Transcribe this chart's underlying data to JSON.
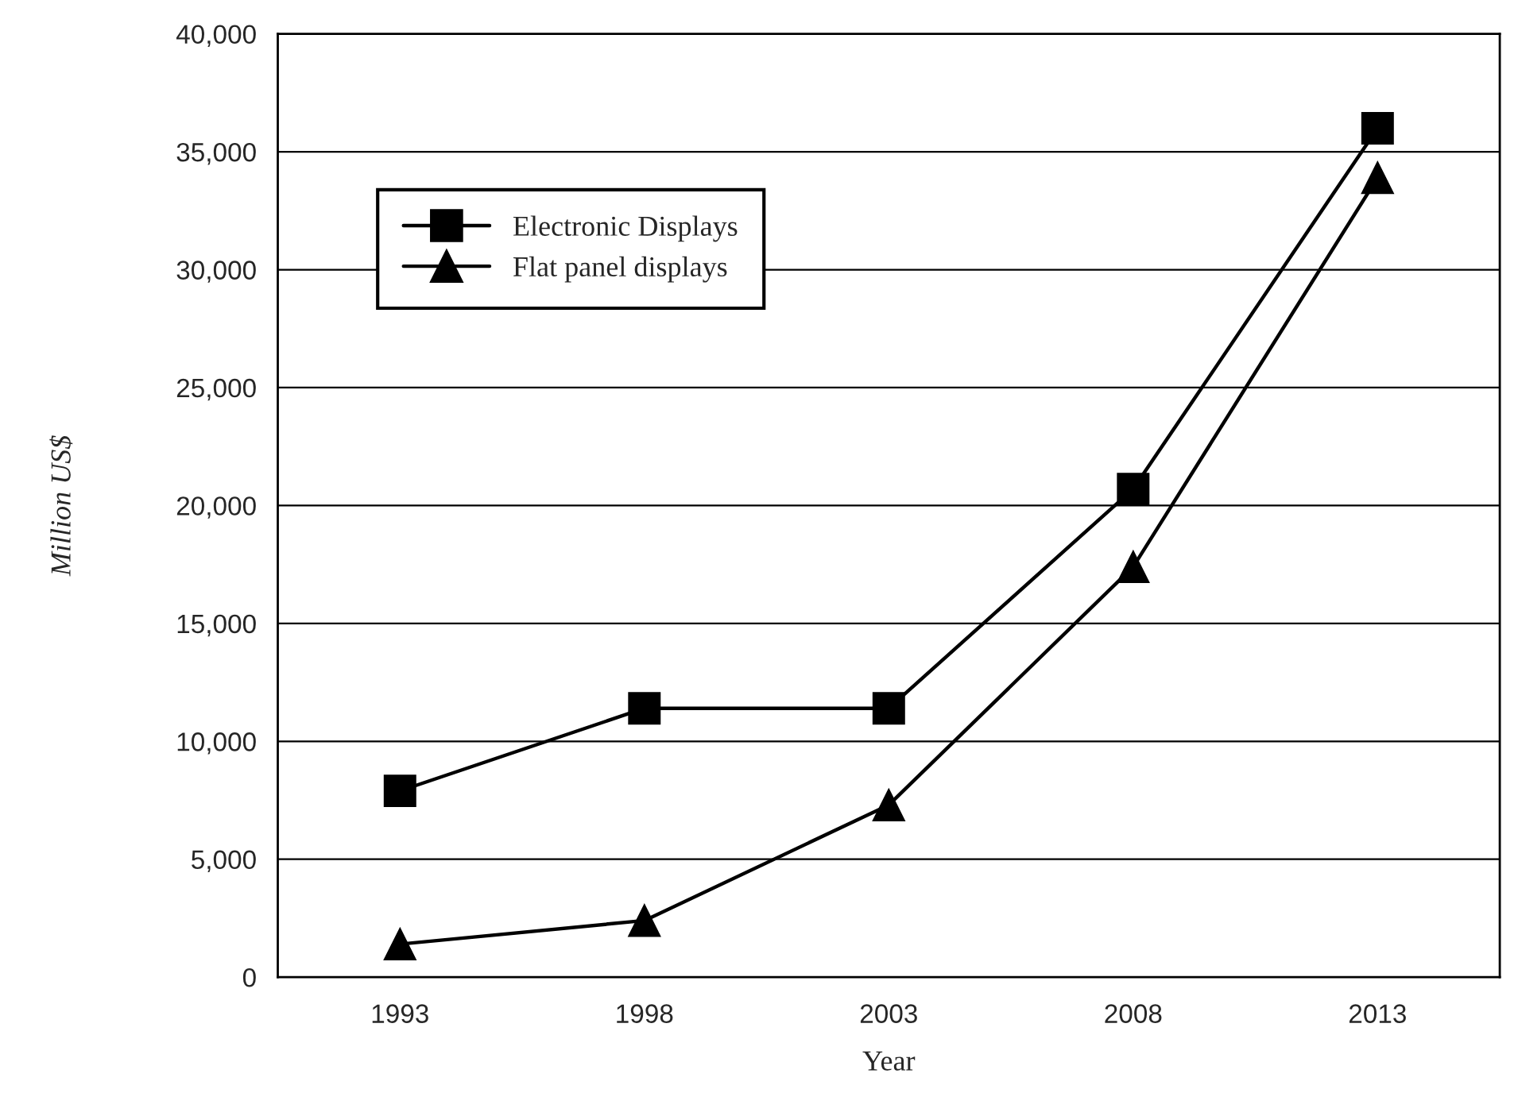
{
  "chart_data": {
    "type": "line",
    "xlabel": "Year",
    "ylabel": "Million US$",
    "categories": [
      "1993",
      "1998",
      "2003",
      "2008",
      "2013"
    ],
    "series": [
      {
        "name": "Electronic Displays",
        "color": "#000000",
        "marker": "square",
        "values": [
          7900,
          11400,
          11400,
          20700,
          36000
        ]
      },
      {
        "name": "Flat panel displays",
        "color": "#000000",
        "marker": "triangle",
        "values": [
          1400,
          2400,
          7300,
          17400,
          33900
        ]
      }
    ],
    "ylim": [
      0,
      40000
    ],
    "yticks": [
      {
        "value": 0,
        "label": "0"
      },
      {
        "value": 5000,
        "label": "5,000"
      },
      {
        "value": 10000,
        "label": "10,000"
      },
      {
        "value": 15000,
        "label": "15,000"
      },
      {
        "value": 20000,
        "label": "20,000"
      },
      {
        "value": 25000,
        "label": "25,000"
      },
      {
        "value": 30000,
        "label": "30,000"
      },
      {
        "value": 35000,
        "label": "35,000"
      },
      {
        "value": 40000,
        "label": "40,000"
      }
    ],
    "grid": "y",
    "legend": "top left",
    "line_style": "solid"
  }
}
